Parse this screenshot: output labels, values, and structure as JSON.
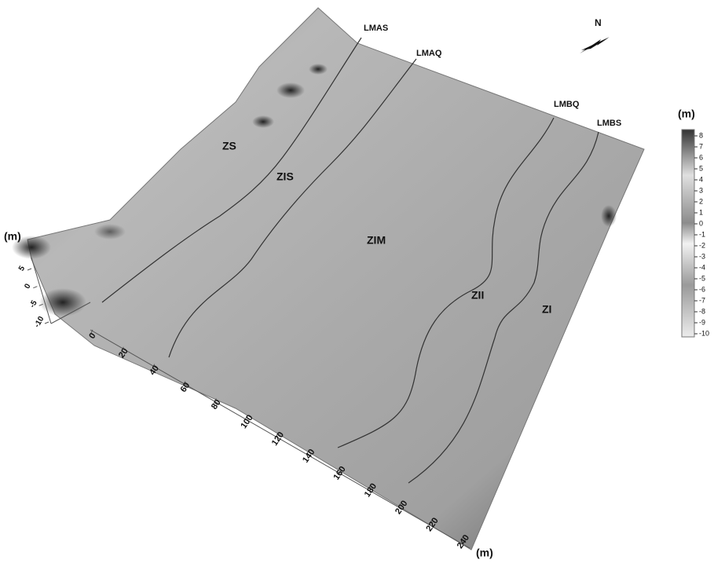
{
  "chart_data": {
    "type": "surface",
    "north": "N",
    "line_labels": [
      "LMAS",
      "LMAQ",
      "LMBQ",
      "LMBS"
    ],
    "zone_labels": [
      "ZS",
      "ZIS",
      "ZIM",
      "ZII",
      "ZI"
    ],
    "xlabel": "(m)",
    "xlim": [
      0,
      240
    ],
    "xticks": [
      0,
      20,
      40,
      60,
      80,
      100,
      120,
      140,
      160,
      180,
      200,
      220,
      240
    ],
    "zlabel": "(m)",
    "zlim": [
      -10,
      5
    ],
    "zticks": [
      5,
      0,
      -5,
      -10
    ],
    "colorbar_title": "(m)",
    "clim": [
      -10,
      8
    ],
    "colorbar_ticks": [
      8,
      7,
      6,
      5,
      4,
      3,
      2,
      1,
      0,
      -1,
      -2,
      -3,
      -4,
      -5,
      -6,
      -7,
      -8,
      -9,
      -10
    ]
  }
}
